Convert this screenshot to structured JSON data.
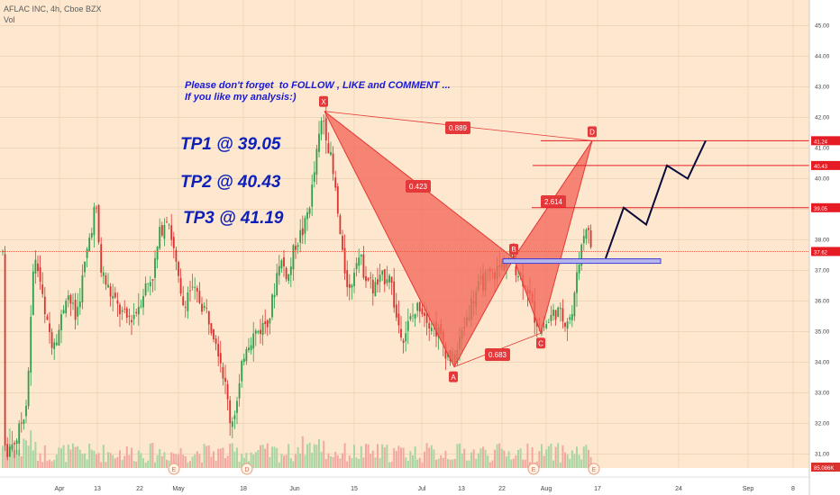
{
  "legend": {
    "symbol": "AFLAC INC, 4h, Cboe BZX",
    "volume_label": "Vol"
  },
  "notes": {
    "follow_text": "Please don't forget  to FOLLOW , LIKE and COMMENT ...\nIf you like my analysis:)",
    "tp1": "TP1 @ 39.05",
    "tp2": "TP2 @ 40.43",
    "tp3": "TP3 @ 41.19"
  },
  "colors": {
    "background": "#fde8cf",
    "pattern_fill": "#f26a5c",
    "pattern_edge": "#e53935",
    "label_red": "#e5383b",
    "candle_up": "#2e9e4a",
    "candle_down": "#d9322f",
    "volume_up": "#a8d5a2",
    "volume_down": "#f2a7a0",
    "projection": "#0a0a3a",
    "zone_fill": "#b7b6ea",
    "zone_edge": "#3e3ed6"
  },
  "chart_data": {
    "type": "candlestick",
    "symbol": "AFLAC INC",
    "interval": "4h",
    "exchange": "Cboe BZX",
    "price_axis": {
      "ticks": [
        "45.00",
        "44.00",
        "43.00",
        "42.00",
        "41.00",
        "40.00",
        "39.00",
        "38.00",
        "37.00",
        "36.00",
        "35.00",
        "34.00",
        "33.00",
        "32.00",
        "31.00"
      ],
      "ylim": [
        30.5,
        45.5
      ]
    },
    "time_axis": {
      "ticks": [
        "Apr",
        "13",
        "22",
        "May",
        "18",
        "Jun",
        "15",
        "Jul",
        "13",
        "22",
        "Aug",
        "17",
        "24",
        "Sep",
        "8"
      ]
    },
    "price_markers": [
      {
        "label": "41.24",
        "value": 41.24,
        "kind": "target"
      },
      {
        "label": "40.43",
        "value": 40.43,
        "kind": "target"
      },
      {
        "label": "39.05",
        "value": 39.05,
        "kind": "target"
      },
      {
        "label": "37.62",
        "value": 37.62,
        "kind": "last"
      },
      {
        "label": "85.086K",
        "kind": "volume"
      }
    ],
    "harmonic_pattern": {
      "points": [
        {
          "label": "X",
          "price": 42.2
        },
        {
          "label": "A",
          "price": 33.85
        },
        {
          "label": "B",
          "price": 37.4
        },
        {
          "label": "C",
          "price": 34.95
        },
        {
          "label": "D",
          "price": 41.24
        }
      ],
      "ratios": [
        {
          "label": "0.889",
          "between": "XD"
        },
        {
          "label": "0.423",
          "between": "XB"
        },
        {
          "label": "0.683",
          "between": "AC"
        },
        {
          "label": "2.614",
          "between": "BD"
        }
      ]
    },
    "target_lines": [
      {
        "label": "TP1",
        "value": 39.05
      },
      {
        "label": "TP2",
        "value": 40.43
      },
      {
        "label": "TP3",
        "value": 41.19
      }
    ],
    "earnings_markers": [
      "E",
      "D",
      "E",
      "E"
    ],
    "grid": true
  }
}
